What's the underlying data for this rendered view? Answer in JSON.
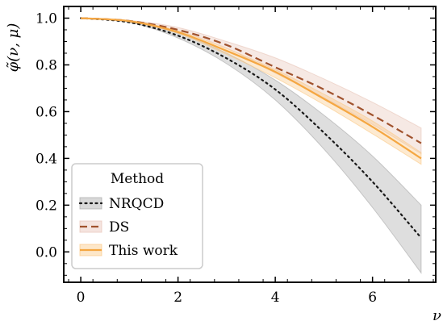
{
  "chart_data": {
    "type": "line",
    "xlabel": "ν",
    "ylabel": "φ̃(ν, μ)",
    "xlim": [
      -0.35,
      7.3
    ],
    "ylim": [
      -0.13,
      1.05
    ],
    "x_ticks": [
      0,
      2,
      4,
      6
    ],
    "y_ticks": [
      0.0,
      0.2,
      0.4,
      0.6,
      0.8,
      1.0
    ],
    "x_tick_labels": [
      "0",
      "2",
      "4",
      "6"
    ],
    "y_tick_labels": [
      "0.0",
      "0.2",
      "0.4",
      "0.6",
      "0.8",
      "1.0"
    ],
    "grid": false,
    "legend": {
      "title": "Method",
      "placement": "lower-left",
      "entries": [
        "NRQCD",
        "DS",
        "This work"
      ]
    },
    "x": [
      0,
      1,
      2,
      3,
      4,
      5,
      6,
      7
    ],
    "series": [
      {
        "name": "NRQCD",
        "style": "dotted",
        "color": "#1a1a1a",
        "band_color": "#a9a9a9",
        "values": [
          1.0,
          0.982,
          0.925,
          0.828,
          0.695,
          0.51,
          0.3,
          0.06
        ],
        "band_lower": [
          1.0,
          0.982,
          0.915,
          0.805,
          0.65,
          0.44,
          0.19,
          -0.09
        ],
        "band_upper": [
          1.0,
          0.985,
          0.935,
          0.85,
          0.735,
          0.585,
          0.41,
          0.2
        ]
      },
      {
        "name": "DS",
        "style": "dashed",
        "color": "#a0522d",
        "band_color": "#e8c4b8",
        "values": [
          1.0,
          0.988,
          0.95,
          0.885,
          0.79,
          0.695,
          0.585,
          0.465
        ],
        "band_lower": [
          1.0,
          0.986,
          0.945,
          0.872,
          0.765,
          0.66,
          0.545,
          0.42
        ],
        "band_upper": [
          1.0,
          0.99,
          0.96,
          0.9,
          0.83,
          0.74,
          0.64,
          0.53
        ]
      },
      {
        "name": "This work",
        "style": "solid",
        "color": "#f5a742",
        "band_color": "#fbc987",
        "values": [
          1.0,
          0.987,
          0.94,
          0.86,
          0.77,
          0.655,
          0.535,
          0.4
        ],
        "band_lower": [
          1.0,
          0.985,
          0.935,
          0.845,
          0.745,
          0.63,
          0.505,
          0.375
        ],
        "band_upper": [
          1.0,
          0.99,
          0.945,
          0.87,
          0.78,
          0.675,
          0.56,
          0.425
        ]
      }
    ]
  }
}
